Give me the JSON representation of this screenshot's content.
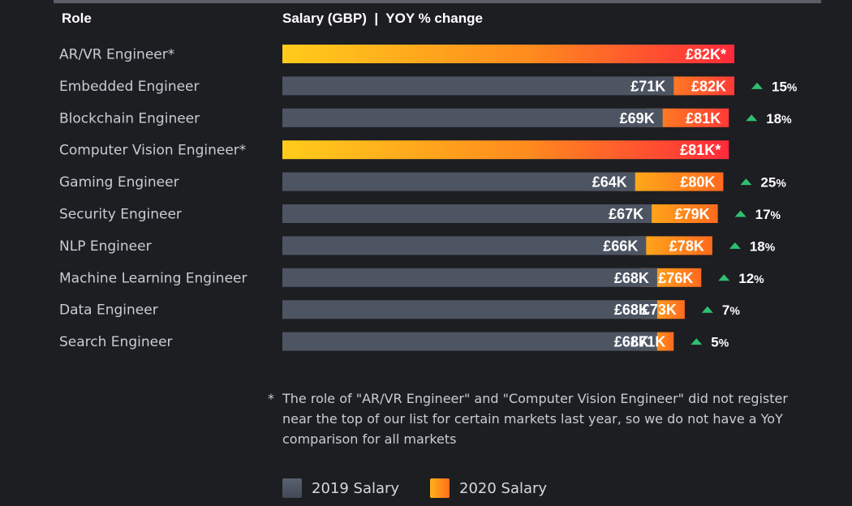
{
  "headers": {
    "role": "Role",
    "salary": "Salary (GBP)  |  YOY % change"
  },
  "chart_data": {
    "type": "bar",
    "orientation": "horizontal",
    "unit": "£K",
    "categories": [
      "AR/VR Engineer*",
      "Embedded Engineer",
      "Blockchain Engineer",
      "Computer Vision Engineer*",
      "Gaming Engineer",
      "Security Engineer",
      "NLP Engineer",
      "Machine Learning Engineer",
      "Data Engineer",
      "Search Engineer"
    ],
    "series": [
      {
        "name": "2019 Salary",
        "values": [
          null,
          71,
          69,
          null,
          64,
          67,
          66,
          68,
          68,
          68
        ],
        "labels": [
          null,
          "£71K",
          "£69K",
          null,
          "£64K",
          "£67K",
          "£66K",
          "£68K",
          "£68K",
          "£68K"
        ]
      },
      {
        "name": "2020 Salary",
        "values": [
          82,
          82,
          81,
          81,
          80,
          79,
          78,
          76,
          73,
          71
        ],
        "labels": [
          "£82K*",
          "£82K",
          "£81K",
          "£81K*",
          "£80K",
          "£79K",
          "£78K",
          "£76K",
          "£73K",
          "£71K"
        ]
      }
    ],
    "yoy_change_pct": [
      null,
      15,
      18,
      null,
      25,
      17,
      18,
      12,
      7,
      5
    ],
    "xlim": [
      0,
      82
    ],
    "colors": {
      "bar2019": "#4d5563",
      "grad2020_start": "#ffb21a",
      "grad2020_end": "#ff6a1e",
      "grad_new_start": "#ffcc1a",
      "grad_new_end": "#ff2a3c",
      "up_arrow": "#2fbf71"
    }
  },
  "footnote": {
    "star": "*",
    "text": "The role of \"AR/VR Engineer\" and \"Computer Vision Engineer\" did not register near the top of our list for certain markets last year, so we do not have a YoY comparison for all markets"
  },
  "legend": [
    {
      "label": "2019 Salary"
    },
    {
      "label": "2020 Salary"
    }
  ]
}
